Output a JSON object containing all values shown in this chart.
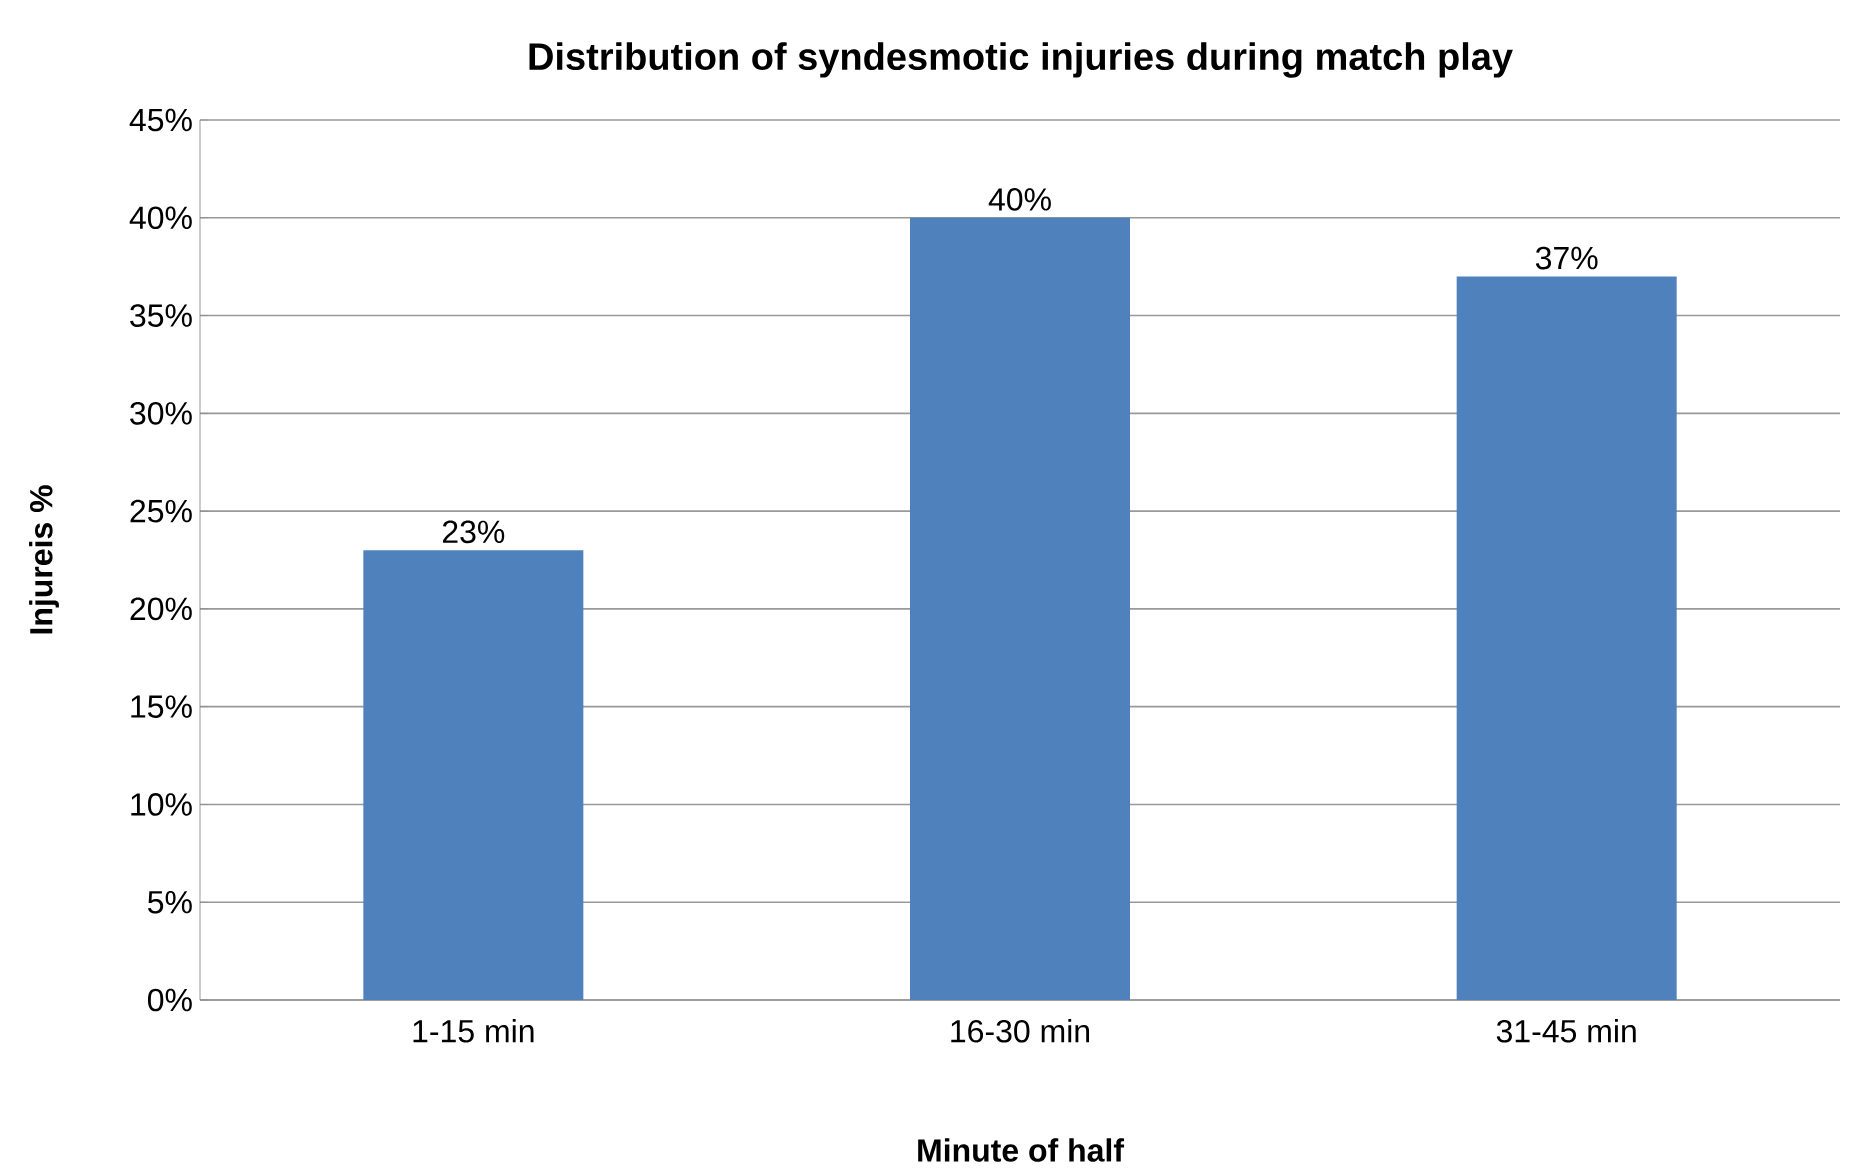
{
  "chart_data": {
    "type": "bar",
    "title": "Distribution of syndesmotic injuries during match play",
    "xlabel": "Minute of half",
    "ylabel": "Injureis %",
    "categories": [
      "1-15 min",
      "16-30 min",
      "31-45 min"
    ],
    "values": [
      23,
      40,
      37
    ],
    "color": "#4f81bd",
    "value_labels": [
      "23%",
      "40%",
      "37%"
    ],
    "ylim": [
      0,
      45
    ],
    "yticks": [
      {
        "value": 0,
        "label": "0%"
      },
      {
        "value": 5,
        "label": "5%"
      },
      {
        "value": 10,
        "label": "10%"
      },
      {
        "value": 15,
        "label": "15%"
      },
      {
        "value": 20,
        "label": "20%"
      },
      {
        "value": 25,
        "label": "25%"
      },
      {
        "value": 30,
        "label": "30%"
      },
      {
        "value": 35,
        "label": "35%"
      },
      {
        "value": 40,
        "label": "40%"
      },
      {
        "value": 45,
        "label": "45%"
      }
    ],
    "grid": "y"
  }
}
